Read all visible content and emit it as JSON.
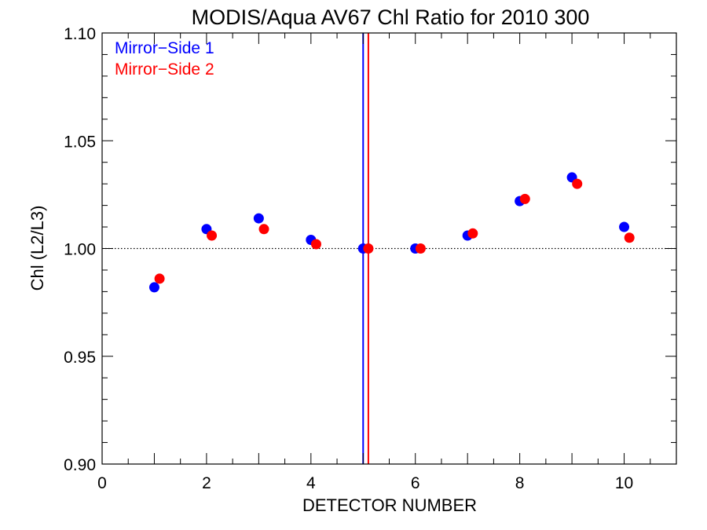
{
  "chart_data": {
    "type": "scatter",
    "title": "MODIS/Aqua AV67 Chl Ratio for 2010 300",
    "xlabel": "DETECTOR NUMBER",
    "ylabel": "Chl (L2/L3)",
    "xlim": [
      0,
      11
    ],
    "ylim": [
      0.9,
      1.1
    ],
    "xticks": [
      0,
      2,
      4,
      6,
      8,
      10
    ],
    "xtick_labels": [
      "0",
      "2",
      "4",
      "6",
      "8",
      "10"
    ],
    "yticks": [
      0.9,
      0.95,
      1.0,
      1.05,
      1.1
    ],
    "ytick_labels": [
      "0.90",
      "0.95",
      "1.00",
      "1.05",
      "1.10"
    ],
    "grid": false,
    "legend_position": "top-left",
    "reference_line": {
      "y": 1.0,
      "style": "dotted",
      "color": "#000000"
    },
    "vertical_lines": [
      {
        "x": 5.0,
        "color": "#0000ff"
      },
      {
        "x": 5.1,
        "color": "#ff0000"
      }
    ],
    "series": [
      {
        "name": "Mirror−Side 1",
        "color": "#0000ff",
        "x": [
          1,
          2,
          3,
          4,
          5,
          6,
          7,
          8,
          9,
          10
        ],
        "y": [
          0.982,
          1.009,
          1.014,
          1.004,
          1.0,
          1.0,
          1.006,
          1.022,
          1.033,
          1.01
        ]
      },
      {
        "name": "Mirror−Side 2",
        "color": "#ff0000",
        "x": [
          1.1,
          2.1,
          3.1,
          4.1,
          5.1,
          6.1,
          7.1,
          8.1,
          9.1,
          10.1
        ],
        "y": [
          0.986,
          1.006,
          1.009,
          1.002,
          1.0,
          1.0,
          1.007,
          1.023,
          1.03,
          1.005
        ]
      }
    ]
  }
}
